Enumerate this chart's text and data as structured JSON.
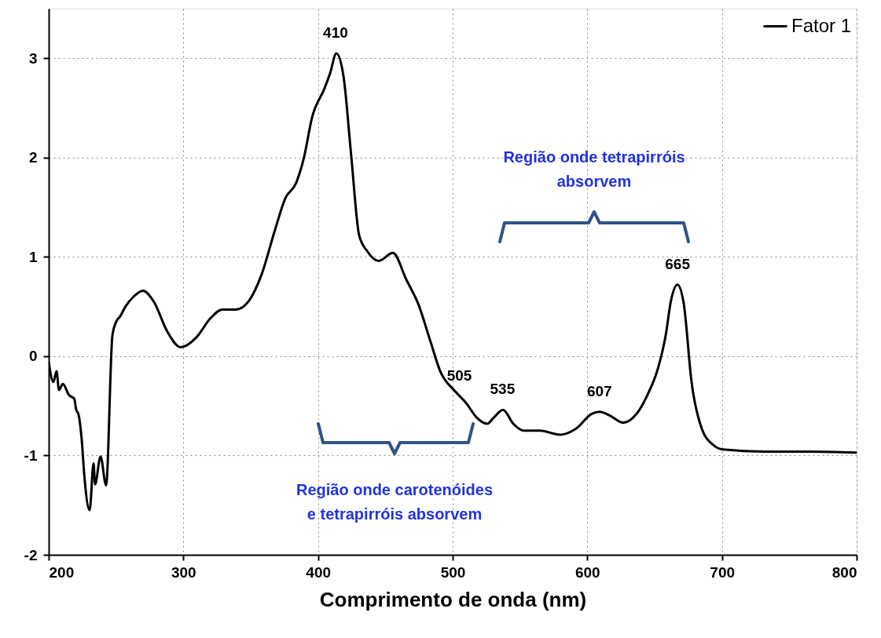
{
  "chart_data": {
    "type": "line",
    "xlabel": "Comprimento de onda (nm)",
    "xlim": [
      200,
      800
    ],
    "xticks": [
      200,
      300,
      400,
      500,
      600,
      700,
      800
    ],
    "ylim": [
      -2,
      3.5
    ],
    "yticks": [
      {
        "value": -2,
        "label": "-2"
      },
      {
        "value": -1,
        "label": "-1"
      },
      {
        "value": 0,
        "label": "0"
      },
      {
        "value": 1,
        "label": "1"
      },
      {
        "value": 2,
        "label": "2"
      },
      {
        "value": 3,
        "label": "3"
      }
    ],
    "grid": true,
    "legend": "top right",
    "marker": "none",
    "line_style": "solid",
    "series": [
      {
        "name": "Fator 1",
        "color": "#000000",
        "x": [
          200,
          203.5,
          205.8,
          207.6,
          210.5,
          215,
          219,
          220.4,
          222,
          224.5,
          226.3,
          230.4,
          233.3,
          234.4,
          238.5,
          242.6,
          247.3,
          250.2,
          253,
          257,
          263,
          270,
          278,
          288,
          298,
          309.7,
          320,
          329,
          339,
          348.8,
          358,
          368,
          375.7,
          383.9,
          389.7,
          395.5,
          404.9,
          409,
          413.6,
          418.9,
          424.7,
          430.5,
          436.4,
          445.1,
          455.6,
          465.6,
          474.9,
          483,
          490.7,
          502.3,
          509.9,
          518,
          525.7,
          530.4,
          537.4,
          545,
          553,
          564.8,
          580,
          591.6,
          603.3,
          609.2,
          617,
          626.7,
          636.6,
          645,
          652.3,
          658.2,
          662,
          666.9,
          671.6,
          677.4,
          685,
          693.2,
          700.8,
          731.7,
          765,
          800
        ],
        "values": [
          -0.06,
          -0.26,
          -0.15,
          -0.34,
          -0.28,
          -0.39,
          -0.43,
          -0.54,
          -0.58,
          -0.84,
          -1.18,
          -1.55,
          -1.08,
          -1.29,
          -1.01,
          -1.3,
          0.21,
          0.35,
          0.4,
          0.5,
          0.6,
          0.66,
          0.55,
          0.25,
          0.09,
          0.19,
          0.38,
          0.47,
          0.47,
          0.56,
          0.82,
          1.27,
          1.59,
          1.75,
          2.01,
          2.4,
          2.7,
          2.85,
          3.05,
          2.82,
          2.01,
          1.22,
          1.06,
          0.96,
          1.04,
          0.77,
          0.51,
          0.17,
          -0.15,
          -0.36,
          -0.47,
          -0.62,
          -0.68,
          -0.62,
          -0.54,
          -0.68,
          -0.75,
          -0.75,
          -0.79,
          -0.73,
          -0.58,
          -0.56,
          -0.6,
          -0.67,
          -0.58,
          -0.38,
          -0.13,
          0.21,
          0.55,
          0.72,
          0.53,
          -0.26,
          -0.73,
          -0.89,
          -0.94,
          -0.96,
          -0.96,
          -0.97
        ]
      }
    ],
    "annotations": [
      {
        "text": "410",
        "x": 413,
        "y": 3.05
      },
      {
        "text": "505",
        "x": 505,
        "y": -0.4
      },
      {
        "text": "535",
        "x": 537,
        "y": -0.54
      },
      {
        "text": "607",
        "x": 609,
        "y": -0.56
      },
      {
        "text": "665",
        "x": 667,
        "y": 0.72
      },
      "Região onde carotenóides\ne tetrapirróis absorvem",
      "Região onde tetrapirróis\nabsorvem"
    ]
  }
}
